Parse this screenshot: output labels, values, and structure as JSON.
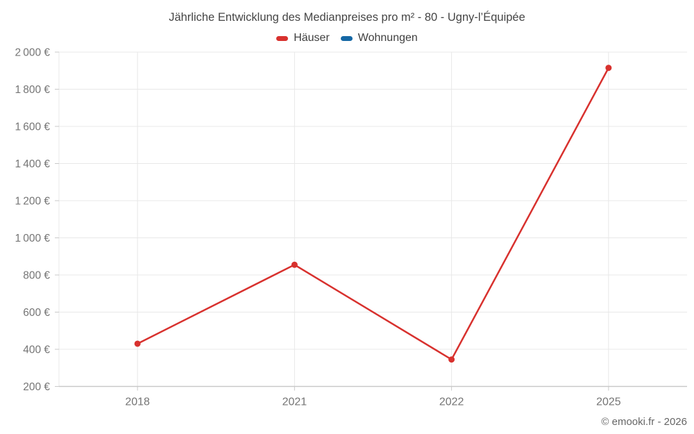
{
  "chart": {
    "title": "Jährliche Entwicklung des Medianpreises pro m² - 80 - Ugny-l’Équipée"
  },
  "footer": {
    "text": "© emooki.fr - 2026"
  },
  "chart_data": {
    "type": "line",
    "title": "Jährliche Entwicklung des Medianpreises pro m² - 80 - Ugny-l’Équipée",
    "categories": [
      "2018",
      "2021",
      "2022",
      "2025"
    ],
    "series": [
      {
        "name": "Häuser",
        "color": "#d8312e",
        "values": [
          430,
          855,
          345,
          1915
        ]
      },
      {
        "name": "Wohnungen",
        "color": "#1568a5",
        "values": []
      }
    ],
    "xlabel": "",
    "ylabel": "",
    "ylim": [
      200,
      2000
    ],
    "yticks": [
      200,
      400,
      600,
      800,
      1000,
      1200,
      1400,
      1600,
      1800,
      2000
    ],
    "ytick_suffix": " €",
    "grid": true,
    "legend_position": "top",
    "colors": {
      "grid_line": "#e8e8e8",
      "axis_line": "#c9c9c9",
      "tick_label": "#757575"
    }
  }
}
